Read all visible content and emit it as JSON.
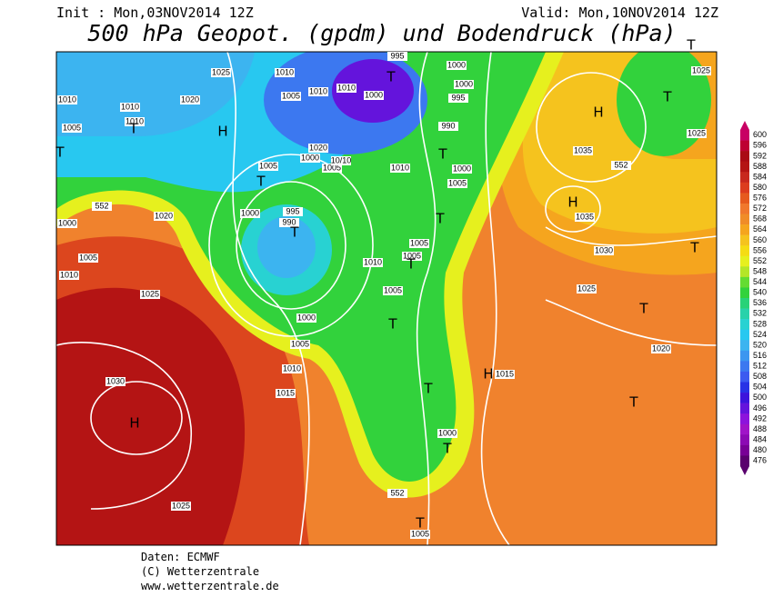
{
  "header": {
    "init": "Init : Mon,03NOV2014 12Z",
    "valid": "Valid: Mon,10NOV2014 12Z",
    "title": "500 hPa Geopot. (gpdm) und Bodendruck (hPa)"
  },
  "footer": {
    "source": "Daten: ECMWF",
    "copyright": "(C) Wetterzentrale",
    "url": "www.wetterzentrale.de"
  },
  "legend": {
    "levels": [
      600,
      596,
      592,
      588,
      584,
      580,
      576,
      572,
      568,
      564,
      560,
      556,
      552,
      548,
      544,
      540,
      536,
      532,
      528,
      524,
      520,
      516,
      512,
      508,
      504,
      500,
      496,
      492,
      488,
      484,
      480,
      476
    ],
    "colors": [
      "#c80064",
      "#be0032",
      "#aa0a14",
      "#b41414",
      "#c8281e",
      "#dc3c1e",
      "#e65a1e",
      "#f0782d",
      "#f08c28",
      "#f5a51e",
      "#f5c31e",
      "#f5dc14",
      "#e6f01e",
      "#b4e628",
      "#64dc32",
      "#32d23c",
      "#28d278",
      "#28d2aa",
      "#28d2d2",
      "#28c8f0",
      "#3cb4f0",
      "#3c96f0",
      "#3c78f0",
      "#3c5af0",
      "#2832e6",
      "#3c14dc",
      "#6414dc",
      "#8c14dc",
      "#a014c8",
      "#8c0ab4",
      "#780096",
      "#5a006e"
    ]
  },
  "map": {
    "isobar_labels": [
      "1025",
      "1010",
      "1010",
      "1020",
      "1005",
      "1010",
      "1010",
      "1005",
      "1010",
      "1010",
      "1000",
      "995",
      "1000",
      "1000",
      "995",
      "990",
      "1005",
      "1000",
      "1005",
      "10/10",
      "1020",
      "1010",
      "1000",
      "1005",
      "1035",
      "1035",
      "1030",
      "1025",
      "1020",
      "1025",
      "1025",
      "1000",
      "995",
      "990",
      "1020",
      "1000",
      "1005",
      "1010",
      "1025",
      "1005",
      "1010",
      "1005",
      "1005",
      "1000",
      "1005",
      "1010",
      "1015",
      "1030",
      "1015",
      "1000",
      "1025",
      "1005",
      "552",
      "552",
      "552"
    ],
    "centers": [
      "H",
      "H",
      "H",
      "H",
      "H",
      "T",
      "T",
      "T",
      "T",
      "T",
      "T",
      "T",
      "T",
      "T",
      "T",
      "T",
      "T",
      "T",
      "T",
      "T",
      "T",
      "T"
    ]
  }
}
